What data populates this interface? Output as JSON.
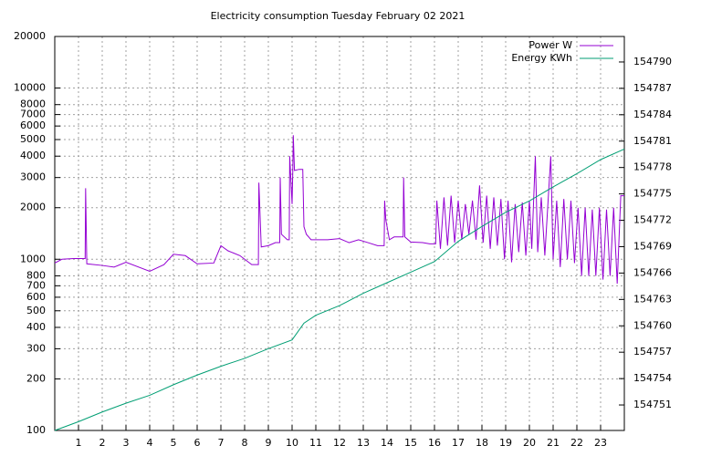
{
  "chart_data": {
    "type": "line",
    "title": "Electricity consumption Tuesday February 02 2021",
    "xlim": [
      0,
      24
    ],
    "xticks": [
      1,
      2,
      3,
      4,
      5,
      6,
      7,
      8,
      9,
      10,
      11,
      12,
      13,
      14,
      15,
      16,
      17,
      18,
      19,
      20,
      21,
      22,
      23
    ],
    "ylim": [
      100,
      20000
    ],
    "log_scale": true,
    "yticks": [
      100,
      200,
      300,
      400,
      500,
      600,
      700,
      800,
      1000,
      2000,
      3000,
      4000,
      5000,
      6000,
      7000,
      8000,
      10000,
      20000
    ],
    "y2lim": [
      154748.1,
      154792.9
    ],
    "y2ticks": [
      154751,
      154754,
      154757,
      154760,
      154763,
      154766,
      154769,
      154772,
      154775,
      154778,
      154781,
      154784,
      154787,
      154790
    ],
    "grid": true,
    "legend": "top-right",
    "series": [
      {
        "name": "Power W",
        "color": "#9400d3",
        "x": [
          0,
          0.3,
          0.8,
          1.28,
          1.3,
          1.35,
          2,
          2.5,
          3,
          4,
          4.6,
          5,
          5.5,
          6,
          6.7,
          7,
          7.3,
          7.8,
          8.3,
          8.58,
          8.6,
          8.7,
          9,
          9.3,
          9.48,
          9.5,
          9.55,
          9.8,
          9.88,
          9.9,
          10,
          10.03,
          10.05,
          10.1,
          10.3,
          10.45,
          10.5,
          10.6,
          10.8,
          11.5,
          12,
          12.4,
          12.8,
          13.2,
          13.6,
          13.88,
          13.9,
          13.95,
          14.1,
          14.3,
          14.68,
          14.7,
          14.75,
          15,
          15.5,
          15.8,
          16.05,
          16.1,
          16.25,
          16.4,
          16.55,
          16.7,
          16.85,
          17.0,
          17.15,
          17.3,
          17.45,
          17.6,
          17.75,
          17.9,
          18.05,
          18.2,
          18.35,
          18.5,
          18.65,
          18.8,
          18.95,
          19.1,
          19.25,
          19.4,
          19.55,
          19.7,
          19.85,
          20.0,
          20.1,
          20.25,
          20.35,
          20.5,
          20.65,
          20.9,
          21.0,
          21.15,
          21.3,
          21.45,
          21.6,
          21.75,
          21.9,
          22.05,
          22.2,
          22.35,
          22.5,
          22.65,
          22.8,
          22.95,
          23.1,
          23.25,
          23.4,
          23.55,
          23.7,
          23.85,
          24
        ],
        "values": [
          950,
          1000,
          1010,
          1010,
          2600,
          940,
          920,
          900,
          960,
          850,
          930,
          1070,
          1050,
          940,
          950,
          1200,
          1120,
          1050,
          930,
          930,
          2800,
          1180,
          1200,
          1250,
          1250,
          3000,
          1400,
          1300,
          1300,
          4000,
          2100,
          3300,
          5300,
          3300,
          3350,
          3350,
          1550,
          1400,
          1300,
          1300,
          1320,
          1250,
          1300,
          1250,
          1200,
          1200,
          2200,
          1700,
          1300,
          1350,
          1350,
          3000,
          1350,
          1260,
          1250,
          1230,
          1230,
          2200,
          1150,
          2300,
          1200,
          2350,
          1250,
          2200,
          1300,
          2100,
          1400,
          2200,
          1300,
          2700,
          1250,
          2350,
          1150,
          2300,
          1200,
          2250,
          1000,
          2200,
          960,
          2100,
          1100,
          2150,
          1050,
          2200,
          1150,
          4000,
          1100,
          2300,
          1050,
          4000,
          1000,
          2200,
          900,
          2250,
          1000,
          2200,
          950,
          2000,
          800,
          2000,
          800,
          1950,
          800,
          2000,
          760,
          1950,
          800,
          2000,
          720,
          2350,
          2350
        ]
      },
      {
        "name": "Energy KWh",
        "color": "#009e73",
        "axis": "y2",
        "x": [
          0,
          1,
          2,
          3,
          4,
          5,
          6,
          7,
          8,
          9,
          10,
          10.5,
          11,
          12,
          13,
          14,
          15,
          16,
          17,
          18,
          19,
          20,
          21,
          22,
          23,
          24
        ],
        "values": [
          154748.1,
          154749.1,
          154750.2,
          154751.2,
          154752.1,
          154753.3,
          154754.4,
          154755.4,
          154756.3,
          154757.4,
          154758.4,
          154760.3,
          154761.2,
          154762.3,
          154763.7,
          154764.9,
          154766.1,
          154767.3,
          154769.6,
          154771.3,
          154772.9,
          154774.2,
          154775.8,
          154777.3,
          154778.9,
          154780.1
        ]
      }
    ]
  }
}
